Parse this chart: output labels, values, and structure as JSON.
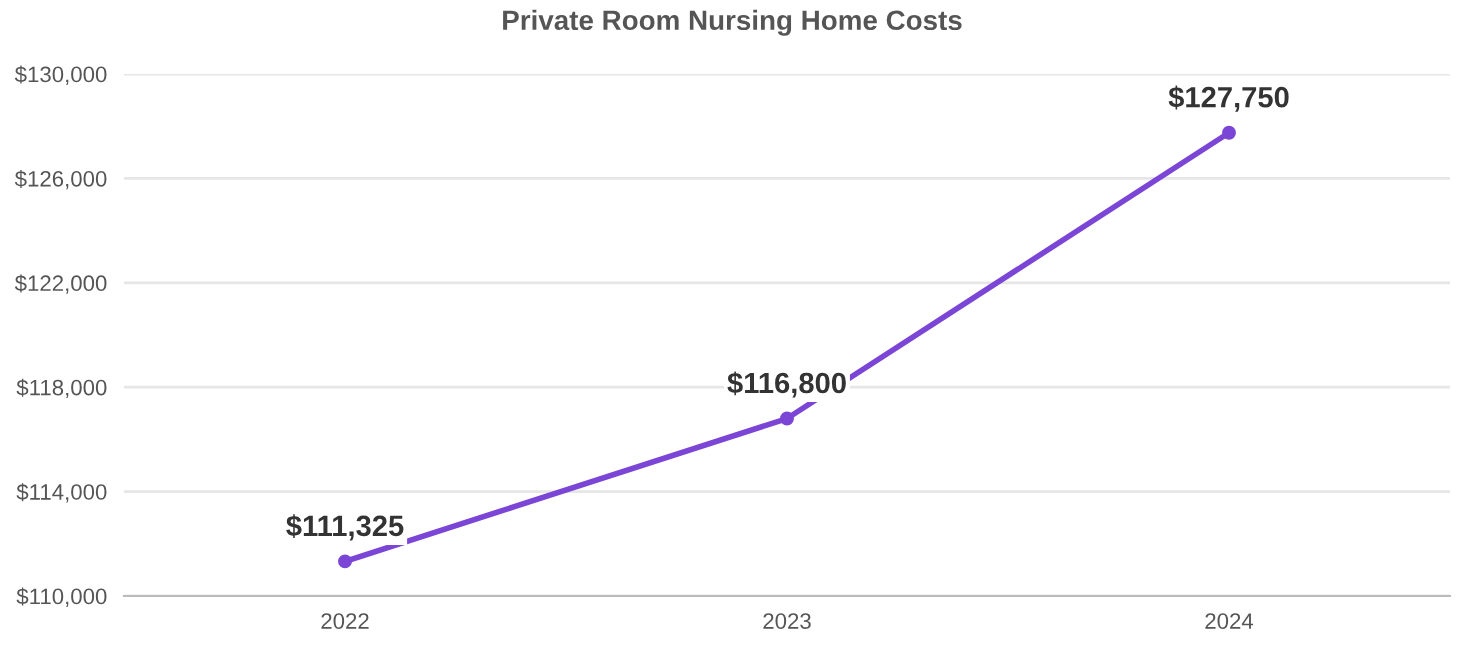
{
  "chart_data": {
    "type": "line",
    "title": "Private Room Nursing Home Costs",
    "categories": [
      "2022",
      "2023",
      "2024"
    ],
    "values": [
      111325,
      116800,
      127750
    ],
    "value_labels": [
      "$111,325",
      "$116,800",
      "$127,750"
    ],
    "color": "#7b45d6",
    "marker": "circle",
    "line_style": "solid",
    "ylim": [
      110000,
      130000
    ],
    "yticks": [
      {
        "value": 110000,
        "label": "$110,000"
      },
      {
        "value": 114000,
        "label": "$114,000"
      },
      {
        "value": 118000,
        "label": "$118,000"
      },
      {
        "value": 122000,
        "label": "$122,000"
      },
      {
        "value": 126000,
        "label": "$126,000"
      },
      {
        "value": 130000,
        "label": "$130,000"
      }
    ],
    "grid": "y"
  }
}
